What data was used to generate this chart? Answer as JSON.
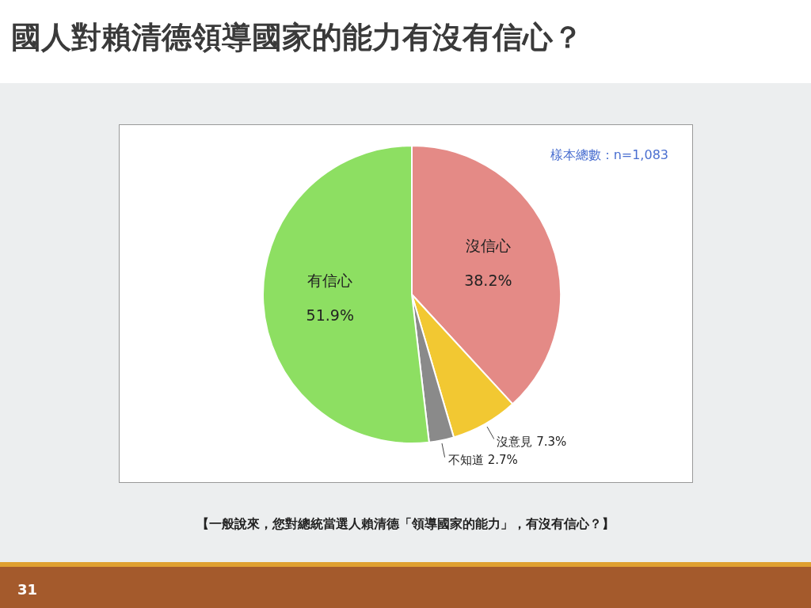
{
  "chart_data": {
    "type": "pie",
    "title": "國人對賴清德領導國家的能力有沒有信心？",
    "categories": [
      "沒信心",
      "沒意見",
      "不知道",
      "有信心"
    ],
    "values": [
      38.2,
      7.3,
      2.7,
      51.9
    ],
    "colors": [
      "#e48a86",
      "#f2c832",
      "#8a8a8a",
      "#8ddf62"
    ],
    "value_labels": [
      "38.2%",
      "7.3%",
      "2.7%",
      "51.9%"
    ],
    "legend": false,
    "annotations": [
      "樣本總數：n=1,083",
      "【一般說來，您對總統當選人賴清德「領導國家的能力」，有沒有信心？】",
      "31"
    ]
  }
}
